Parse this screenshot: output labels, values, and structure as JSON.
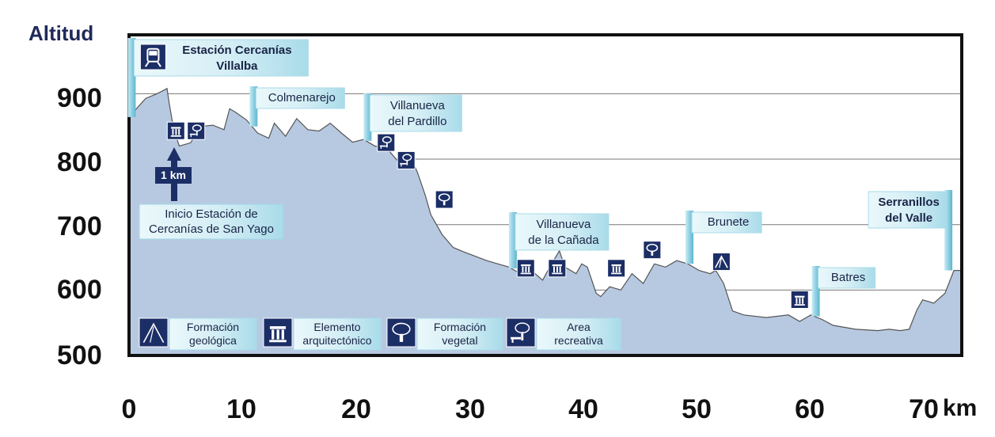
{
  "chart_data": {
    "type": "area",
    "title": "",
    "ylabel": "Altitud",
    "xlabel": "km",
    "ylim": [
      500,
      990
    ],
    "xlim": [
      0,
      74.5
    ],
    "yticks": [
      900,
      800,
      700,
      600,
      500
    ],
    "xticks": [
      0,
      10,
      20,
      30,
      40,
      50,
      60,
      70
    ],
    "grid": true,
    "fill_color": "#b7c9e1",
    "line_color": "#555555",
    "frame_color": "#111111",
    "x": [
      0,
      0.7,
      1.5,
      2.5,
      3.4,
      3.6,
      4.0,
      4.5,
      5.5,
      6.5,
      7.5,
      8.5,
      9.0,
      9.5,
      10.5,
      11.5,
      12.5,
      13.0,
      14.0,
      15.0,
      16.0,
      17.0,
      18.0,
      19.0,
      20.0,
      21.0,
      22.0,
      23.0,
      24.0,
      25.0,
      25.8,
      26.5,
      27.0,
      28.0,
      29.0,
      30.0,
      32.0,
      34.0,
      35.0,
      36.0,
      37.0,
      37.8,
      38.5,
      39.0,
      40.0,
      40.5,
      41.0,
      41.8,
      42.2,
      43.0,
      44.0,
      45.0,
      46.0,
      47.0,
      48.0,
      49.0,
      50.0,
      51.0,
      52.0,
      52.5,
      53.2,
      54.0,
      55.0,
      57.0,
      59.0,
      60.0,
      61.0,
      62.0,
      63.0,
      65.0,
      67.0,
      68.0,
      69.0,
      69.8,
      70.5,
      71.0,
      72.0,
      73.0,
      73.8,
      74.5
    ],
    "values": [
      862,
      878,
      893,
      900,
      908,
      885,
      845,
      820,
      825,
      850,
      852,
      845,
      877,
      872,
      860,
      840,
      832,
      855,
      835,
      862,
      845,
      843,
      855,
      840,
      826,
      830,
      820,
      818,
      798,
      810,
      780,
      745,
      715,
      685,
      665,
      658,
      645,
      635,
      625,
      630,
      615,
      640,
      660,
      635,
      625,
      640,
      635,
      595,
      590,
      605,
      600,
      625,
      610,
      640,
      635,
      645,
      640,
      630,
      625,
      630,
      610,
      568,
      562,
      558,
      562,
      552,
      562,
      555,
      546,
      540,
      538,
      540,
      538,
      540,
      570,
      585,
      580,
      595,
      630,
      630
    ],
    "series": [
      {
        "name": "",
        "values": "see values"
      }
    ]
  },
  "labels": {
    "title_y": "Altitud",
    "unit_x": "km",
    "y_ticks": [
      "900",
      "800",
      "700",
      "600",
      "500"
    ],
    "x_ticks": [
      "0",
      "10",
      "20",
      "30",
      "40",
      "50",
      "60",
      "70"
    ],
    "one_km": "1 km",
    "start_line1": "Inicio Estación de",
    "start_line2": "Cercanías de San Yago"
  },
  "places": [
    {
      "km": 0.1,
      "line1": "Estación Cercanías",
      "line2": "Villalba",
      "icon": "train-icon"
    },
    {
      "km": 11.0,
      "line1": "Colmenarejo",
      "line2": "",
      "icon": ""
    },
    {
      "km": 21.2,
      "line1": "Villanueva",
      "line2": "del Pardillo",
      "icon": ""
    },
    {
      "km": 34.2,
      "line1": "Villanueva",
      "line2": "de la Cañada",
      "icon": ""
    },
    {
      "km": 50.0,
      "line1": "Brunete",
      "line2": "",
      "icon": ""
    },
    {
      "km": 61.3,
      "line1": "Batres",
      "line2": "",
      "icon": ""
    },
    {
      "km": 73.8,
      "line1": "Serranillos",
      "line2": "del Valle",
      "icon": ""
    }
  ],
  "poi_icons": [
    {
      "km": 4.2,
      "alt": 830,
      "type": "column-icon"
    },
    {
      "km": 6.0,
      "alt": 830,
      "type": "picnic-icon"
    },
    {
      "km": 23.0,
      "alt": 812,
      "type": "picnic-icon"
    },
    {
      "km": 24.8,
      "alt": 785,
      "type": "picnic-icon"
    },
    {
      "km": 28.2,
      "alt": 725,
      "type": "tree-icon"
    },
    {
      "km": 35.5,
      "alt": 620,
      "type": "column-icon"
    },
    {
      "km": 38.3,
      "alt": 620,
      "type": "column-icon"
    },
    {
      "km": 43.6,
      "alt": 620,
      "type": "column-icon"
    },
    {
      "km": 46.8,
      "alt": 648,
      "type": "tree-icon"
    },
    {
      "km": 53.0,
      "alt": 630,
      "type": "mountain-icon"
    },
    {
      "km": 60.0,
      "alt": 572,
      "type": "column-icon"
    }
  ],
  "legend": [
    {
      "icon": "mountain-icon",
      "line1": "Formación",
      "line2": "geológica"
    },
    {
      "icon": "column-icon",
      "line1": "Elemento",
      "line2": "arquitectónico"
    },
    {
      "icon": "tree-icon",
      "line1": "Formación",
      "line2": "vegetal"
    },
    {
      "icon": "picnic-icon",
      "line1": "Area",
      "line2": "recreativa"
    }
  ],
  "colors": {
    "icon_bg": "#1c2e66",
    "flag_light": "#dff3f8",
    "flag_mid": "#9fd6e6",
    "flag_pole": "#7fc8dc"
  }
}
